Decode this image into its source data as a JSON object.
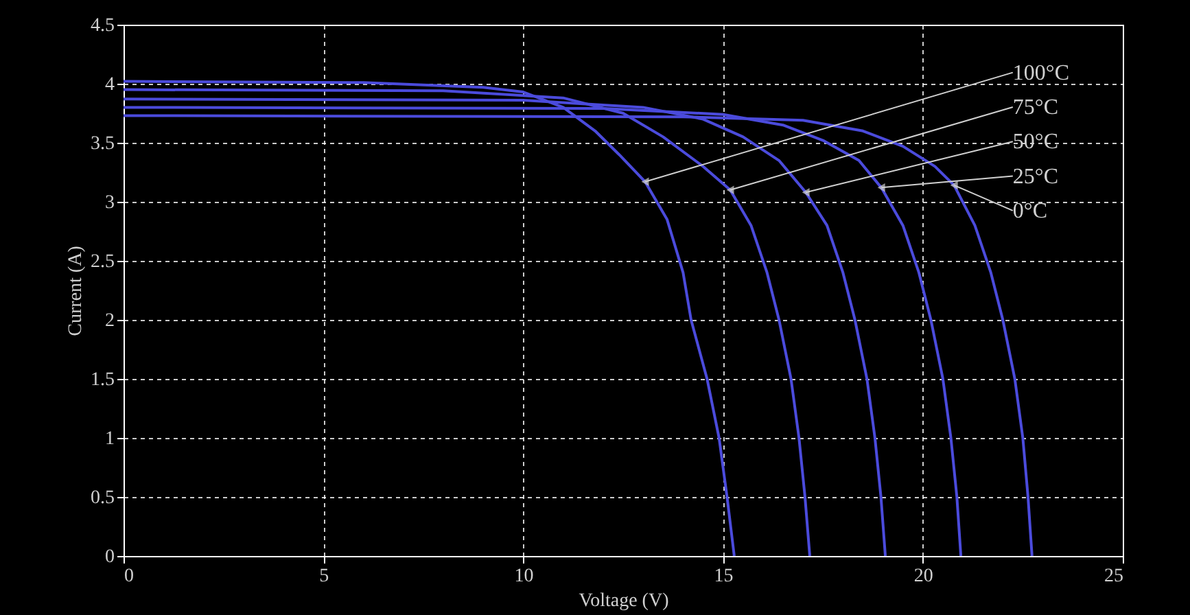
{
  "chart_data": {
    "type": "line",
    "xlabel": "Voltage (V)",
    "ylabel": "Current (A)",
    "xlim": [
      0,
      25
    ],
    "xticks": [
      0,
      5,
      10,
      15,
      20,
      25
    ],
    "ylim": [
      0,
      4.5
    ],
    "yticks": [
      0,
      0.5,
      1,
      1.5,
      2,
      2.5,
      3,
      3.5,
      4,
      4.5
    ],
    "grid": true,
    "legend": false,
    "marker": "none",
    "line_style": "solid",
    "series": [
      {
        "color": "#4b4bdc",
        "x": [
          0,
          6,
          9,
          10,
          11,
          11.8,
          12.4,
          13.05,
          13.6,
          14.0,
          14.2,
          14.6,
          14.9,
          15.1,
          15.28
        ],
        "values": [
          4.02,
          4.01,
          3.97,
          3.93,
          3.8,
          3.6,
          3.4,
          3.17,
          2.85,
          2.4,
          2.0,
          1.5,
          1.0,
          0.5,
          0
        ]
      },
      {
        "color": "#4b4bdc",
        "x": [
          0,
          8,
          11,
          12.5,
          13.5,
          14.5,
          15.18,
          15.7,
          16.1,
          16.4,
          16.7,
          16.9,
          17.05,
          17.17
        ],
        "values": [
          3.95,
          3.94,
          3.88,
          3.75,
          3.55,
          3.3,
          3.1,
          2.8,
          2.4,
          2.0,
          1.5,
          1.0,
          0.5,
          0
        ]
      },
      {
        "color": "#4b4bdc",
        "x": [
          0,
          10,
          13,
          14.5,
          15.5,
          16.4,
          17.07,
          17.6,
          18.0,
          18.3,
          18.6,
          18.8,
          18.95,
          19.06
        ],
        "values": [
          3.87,
          3.86,
          3.8,
          3.7,
          3.55,
          3.35,
          3.08,
          2.8,
          2.4,
          2.0,
          1.5,
          1.0,
          0.5,
          0
        ]
      },
      {
        "color": "#4b4bdc",
        "x": [
          0,
          12,
          15,
          16.5,
          17.5,
          18.4,
          18.96,
          19.5,
          19.9,
          20.2,
          20.5,
          20.7,
          20.85,
          20.95
        ],
        "values": [
          3.8,
          3.79,
          3.74,
          3.65,
          3.52,
          3.35,
          3.12,
          2.8,
          2.4,
          2.0,
          1.5,
          1.0,
          0.5,
          0
        ]
      },
      {
        "color": "#4b4bdc",
        "x": [
          0,
          14,
          17,
          18.5,
          19.5,
          20.3,
          20.78,
          21.3,
          21.7,
          22.0,
          22.3,
          22.5,
          22.63,
          22.73
        ],
        "values": [
          3.73,
          3.72,
          3.69,
          3.6,
          3.47,
          3.3,
          3.14,
          2.8,
          2.4,
          2.0,
          1.5,
          1.0,
          0.5,
          0
        ]
      }
    ],
    "annotations": [
      {
        "text": "100°C",
        "x": 13.05,
        "y": 3.17
      },
      {
        "text": "75°C",
        "x": 15.18,
        "y": 3.1
      },
      {
        "text": "50°C",
        "x": 17.07,
        "y": 3.08
      },
      {
        "text": "25°C",
        "x": 18.96,
        "y": 3.12
      },
      {
        "text": "0°C",
        "x": 20.78,
        "y": 3.14
      }
    ]
  }
}
